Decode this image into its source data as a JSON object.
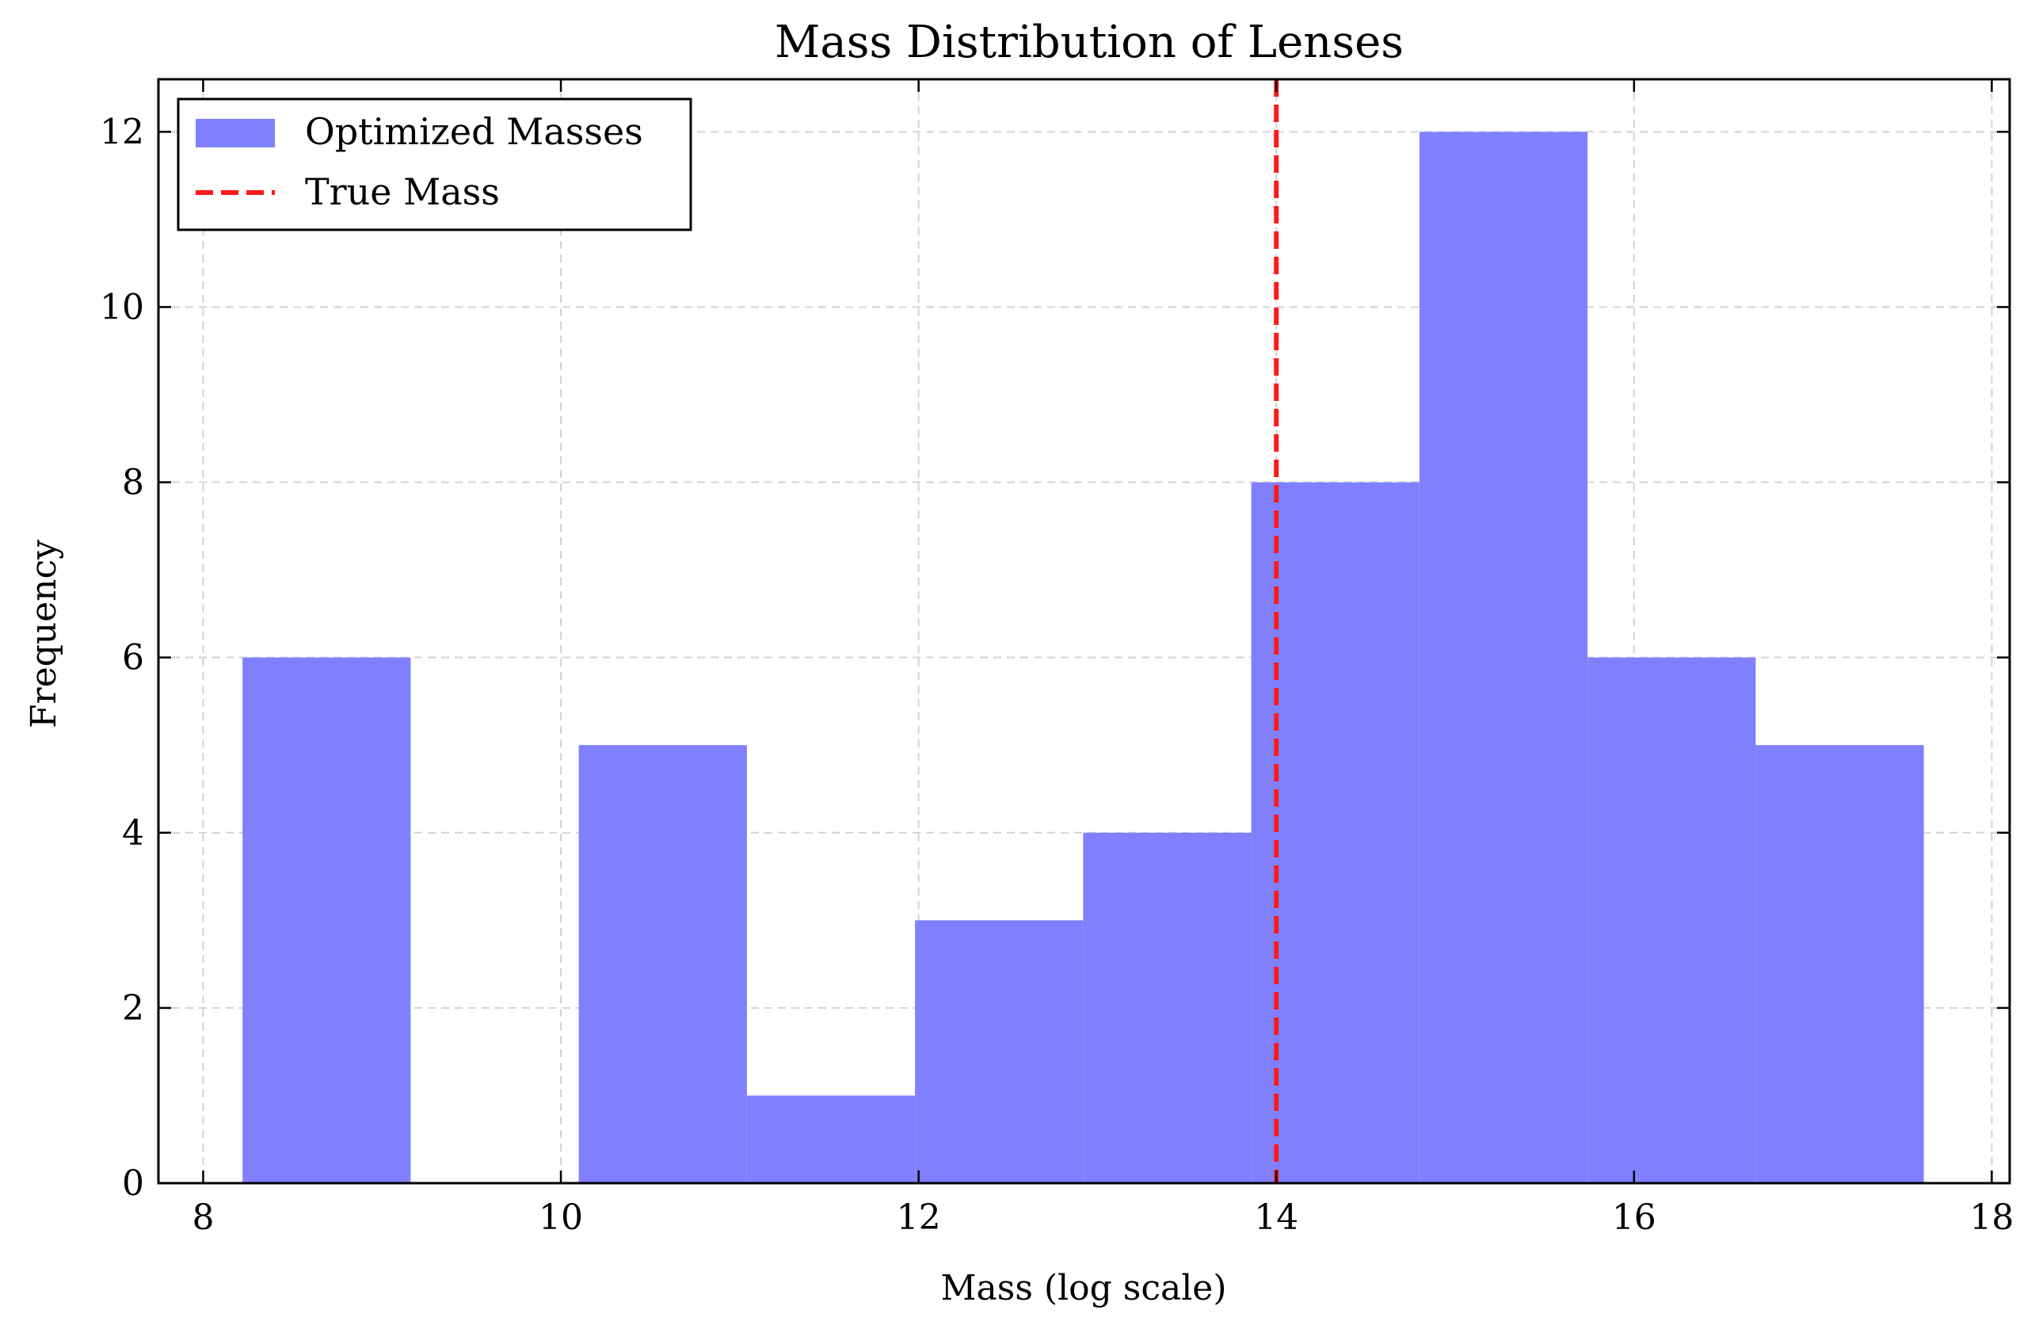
{
  "chart_data": {
    "type": "bar",
    "title": "Mass Distribution of Lenses",
    "xlabel": "Mass (log scale)",
    "ylabel": "Frequency",
    "xlim": [
      7.75,
      18.1
    ],
    "ylim": [
      0,
      12.6
    ],
    "x_ticks": [
      8,
      10,
      12,
      14,
      16,
      18
    ],
    "x_tick_labels": [
      "8",
      "10",
      "12",
      "14",
      "16",
      "18"
    ],
    "y_ticks": [
      0,
      2,
      4,
      6,
      8,
      10,
      12
    ],
    "y_tick_labels": [
      "0",
      "2",
      "4",
      "6",
      "8",
      "10",
      "12"
    ],
    "grid": true,
    "legend_position": "top-left",
    "series": [
      {
        "name": "Optimized Masses",
        "kind": "histogram",
        "color": "#8080ff",
        "bin_edges": [
          8.22,
          9.16,
          10.1,
          11.04,
          11.98,
          12.92,
          13.86,
          14.8,
          15.74,
          16.68,
          17.62
        ],
        "values": [
          6,
          0,
          5,
          1,
          3,
          4,
          8,
          12,
          6,
          5
        ]
      },
      {
        "name": "True Mass",
        "kind": "vline",
        "color": "#ff1a1a",
        "x": 14.0
      }
    ]
  }
}
